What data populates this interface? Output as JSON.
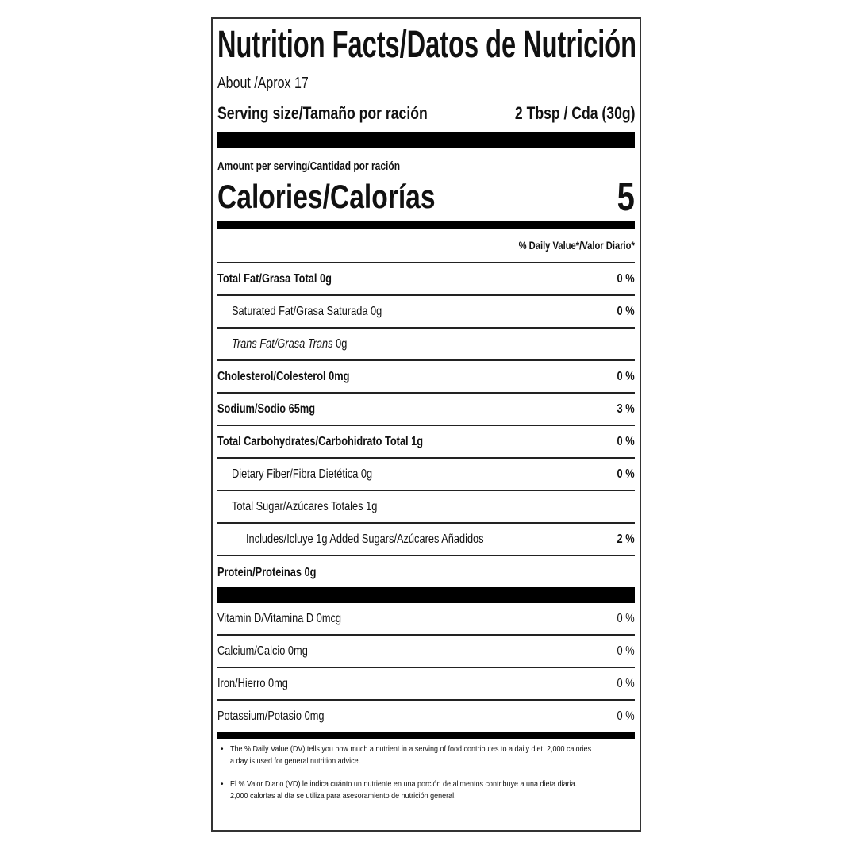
{
  "header": {
    "title": "Nutrition Facts/Datos de Nutrición"
  },
  "serving": {
    "servings": "About /Aprox 17",
    "label": "Serving size/Tamaño por ración",
    "size": "2 Tbsp / Cda (30g)"
  },
  "calories": {
    "amount_label": "Amount per serving/Cantidad por ración",
    "label": "Calories/Calorías",
    "value": 5
  },
  "daily_value_header": "% Daily Value*/Valor Diario*",
  "nutrients": [
    {
      "name": "Total Fat/Grasa Total",
      "amount": "0g",
      "dv": "0 %"
    },
    {
      "name": "Saturated Fat/Grasa Saturada",
      "amount": "0g",
      "dv": "0 %"
    },
    {
      "name": "Trans Fat/Grasa Trans",
      "amount": "0g"
    },
    {
      "name": "Cholesterol/Colesterol",
      "amount": "0mg",
      "dv": "0 %"
    },
    {
      "name": "Sodium/Sodio",
      "amount": "65mg",
      "dv": "3 %"
    },
    {
      "name": "Total Carbohydrates/Carbohidrato Total",
      "amount": "1g",
      "dv": "0 %"
    },
    {
      "name": "Dietary Fiber/Fibra Dietética",
      "amount": "0g",
      "dv": "0 %"
    },
    {
      "name": "Total Sugar/Azúcares Totales",
      "amount": "1g"
    },
    {
      "name": "Includes/Icluye 1g  Added Sugars/Azúcares Añadidos",
      "dv": "2 %"
    },
    {
      "name": "Protein/Proteinas",
      "amount": "0g"
    }
  ],
  "vitamins": [
    {
      "name": "Vitamin D/Vitamina D",
      "amount": "0mcg",
      "dv": "0 %"
    },
    {
      "name": "Calcium/Calcio",
      "amount": "0mg",
      "dv": "0 %"
    },
    {
      "name": "Iron/Hierro",
      "amount": "0mg",
      "dv": "0 %"
    },
    {
      "name": "Potassium/Potasio",
      "amount": "0mg",
      "dv": "0 %"
    }
  ],
  "footnotes": [
    "The % Daily Value (DV) tells you how much a nutrient in a serving of food contributes to a daily diet. 2,000 calories a day is used for general nutrition advice.",
    "El % Valor Diario (VD) le indica cuánto un nutriente en una porción de alimentos contribuye a una dieta diaria. 2,000 calorías al día se utiliza para asesoramiento de nutrición general."
  ]
}
